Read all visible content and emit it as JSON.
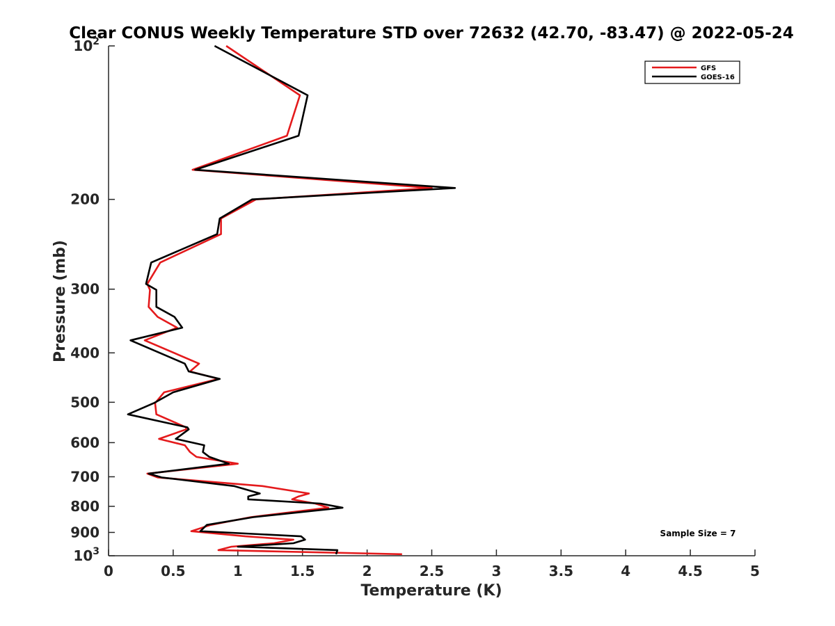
{
  "chart_data": {
    "type": "line",
    "title": "Clear CONUS Weekly Temperature STD over 72632 (42.70, -83.47) @ 2022-05-24",
    "xlabel": "Temperature (K)",
    "ylabel": "Pressure (mb)",
    "xlim": [
      0,
      5
    ],
    "ylim": [
      100,
      1000
    ],
    "y_scale": "log",
    "y_reversed": true,
    "x_ticks": [
      "0",
      "0.5",
      "1",
      "1.5",
      "2",
      "2.5",
      "3",
      "3.5",
      "4",
      "4.5",
      "5"
    ],
    "y_ticks": [
      {
        "value": 100,
        "base": "10",
        "exp": "2"
      },
      {
        "value": 200,
        "label": "200"
      },
      {
        "value": 300,
        "label": "300"
      },
      {
        "value": 400,
        "label": "400"
      },
      {
        "value": 500,
        "label": "500"
      },
      {
        "value": 600,
        "label": "600"
      },
      {
        "value": 700,
        "label": "700"
      },
      {
        "value": 800,
        "label": "800"
      },
      {
        "value": 900,
        "label": "900"
      },
      {
        "value": 1000,
        "base": "10",
        "exp": "3"
      }
    ],
    "grid": false,
    "legend_position": "top-right",
    "series": [
      {
        "name": "GFS",
        "color": "#e41a1c",
        "points": [
          [
            0.91,
            100
          ],
          [
            1.48,
            125
          ],
          [
            1.38,
            150
          ],
          [
            0.65,
            175
          ],
          [
            2.5,
            190
          ],
          [
            1.14,
            200
          ],
          [
            0.87,
            218
          ],
          [
            0.87,
            234
          ],
          [
            0.4,
            266
          ],
          [
            0.3,
            293
          ],
          [
            0.32,
            301
          ],
          [
            0.31,
            325
          ],
          [
            0.38,
            340
          ],
          [
            0.53,
            357
          ],
          [
            0.28,
            378
          ],
          [
            0.7,
            420
          ],
          [
            0.63,
            435
          ],
          [
            0.85,
            450
          ],
          [
            0.43,
            478
          ],
          [
            0.36,
            502
          ],
          [
            0.37,
            528
          ],
          [
            0.6,
            560
          ],
          [
            0.6,
            565
          ],
          [
            0.39,
            590
          ],
          [
            0.59,
            607
          ],
          [
            0.63,
            626
          ],
          [
            0.68,
            640
          ],
          [
            1.0,
            660
          ],
          [
            0.3,
            690
          ],
          [
            0.38,
            702
          ],
          [
            1.19,
            730
          ],
          [
            1.55,
            755
          ],
          [
            1.47,
            765
          ],
          [
            1.42,
            775
          ],
          [
            1.6,
            790
          ],
          [
            1.7,
            805
          ],
          [
            1.1,
            840
          ],
          [
            0.79,
            870
          ],
          [
            0.64,
            895
          ],
          [
            1.06,
            916
          ],
          [
            1.43,
            930
          ],
          [
            1.28,
            945
          ],
          [
            0.95,
            960
          ],
          [
            0.85,
            975
          ],
          [
            2.27,
            993
          ]
        ]
      },
      {
        "name": "GOES-16",
        "color": "#000000",
        "points": [
          [
            0.82,
            100
          ],
          [
            1.54,
            125
          ],
          [
            1.47,
            150
          ],
          [
            0.67,
            175
          ],
          [
            2.68,
            190
          ],
          [
            1.11,
            200
          ],
          [
            0.86,
            218
          ],
          [
            0.84,
            234
          ],
          [
            0.33,
            266
          ],
          [
            0.29,
            293
          ],
          [
            0.37,
            301
          ],
          [
            0.37,
            325
          ],
          [
            0.51,
            340
          ],
          [
            0.57,
            357
          ],
          [
            0.17,
            378
          ],
          [
            0.59,
            420
          ],
          [
            0.62,
            435
          ],
          [
            0.86,
            450
          ],
          [
            0.5,
            478
          ],
          [
            0.35,
            502
          ],
          [
            0.15,
            528
          ],
          [
            0.61,
            560
          ],
          [
            0.62,
            565
          ],
          [
            0.52,
            590
          ],
          [
            0.74,
            607
          ],
          [
            0.73,
            626
          ],
          [
            0.78,
            640
          ],
          [
            0.93,
            660
          ],
          [
            0.31,
            690
          ],
          [
            0.41,
            702
          ],
          [
            0.97,
            730
          ],
          [
            1.17,
            755
          ],
          [
            1.08,
            765
          ],
          [
            1.08,
            775
          ],
          [
            1.64,
            790
          ],
          [
            1.81,
            805
          ],
          [
            1.12,
            840
          ],
          [
            0.76,
            870
          ],
          [
            0.71,
            895
          ],
          [
            1.49,
            916
          ],
          [
            1.52,
            930
          ],
          [
            1.43,
            945
          ],
          [
            1.0,
            960
          ],
          [
            1.77,
            975
          ],
          [
            1.76,
            993
          ]
        ]
      }
    ],
    "annotation": "Sample Size = 7"
  }
}
